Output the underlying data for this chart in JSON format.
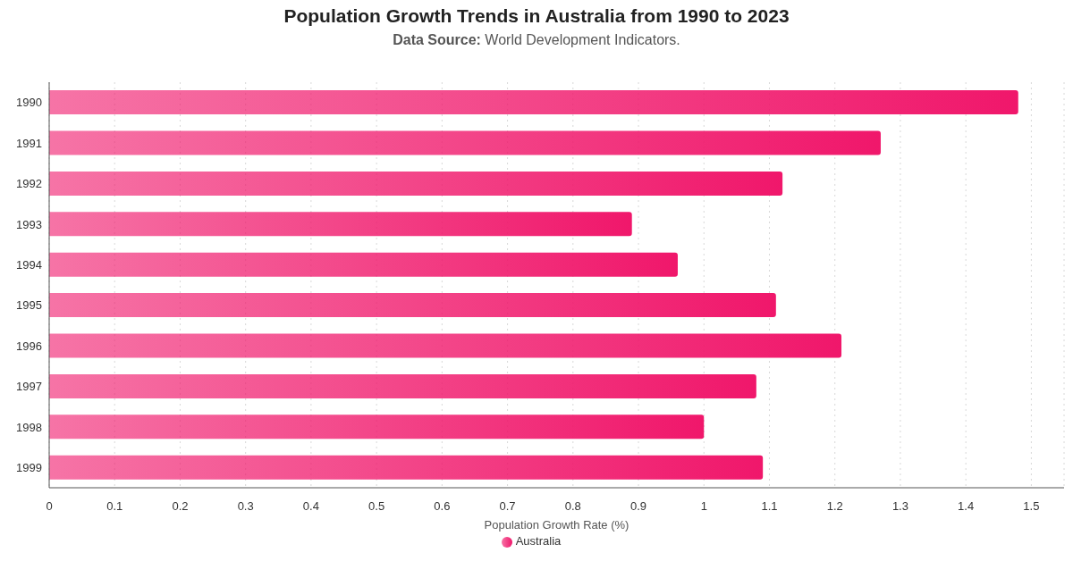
{
  "chart_data": {
    "type": "bar",
    "orientation": "horizontal",
    "title": "Population Growth Trends in Australia from 1990 to 2023",
    "subtitle": "Data Source: World Development Indicators.",
    "xlabel": "Population Growth Rate (%)",
    "categories": [
      "1990",
      "1991",
      "1992",
      "1993",
      "1994",
      "1995",
      "1996",
      "1997",
      "1998",
      "1999"
    ],
    "series": [
      {
        "name": "Australia",
        "color": "#f0176b",
        "values": [
          1.48,
          1.27,
          1.12,
          0.89,
          0.96,
          1.11,
          1.21,
          1.08,
          1.0,
          1.09
        ]
      }
    ],
    "xlim": [
      0,
      1.55
    ],
    "xticks": [
      0,
      0.1,
      0.2,
      0.3,
      0.4,
      0.5,
      0.6,
      0.7,
      0.8,
      0.9,
      1,
      1.1,
      1.2,
      1.3,
      1.4,
      1.5
    ],
    "grid": "x",
    "legend": "bottom"
  }
}
